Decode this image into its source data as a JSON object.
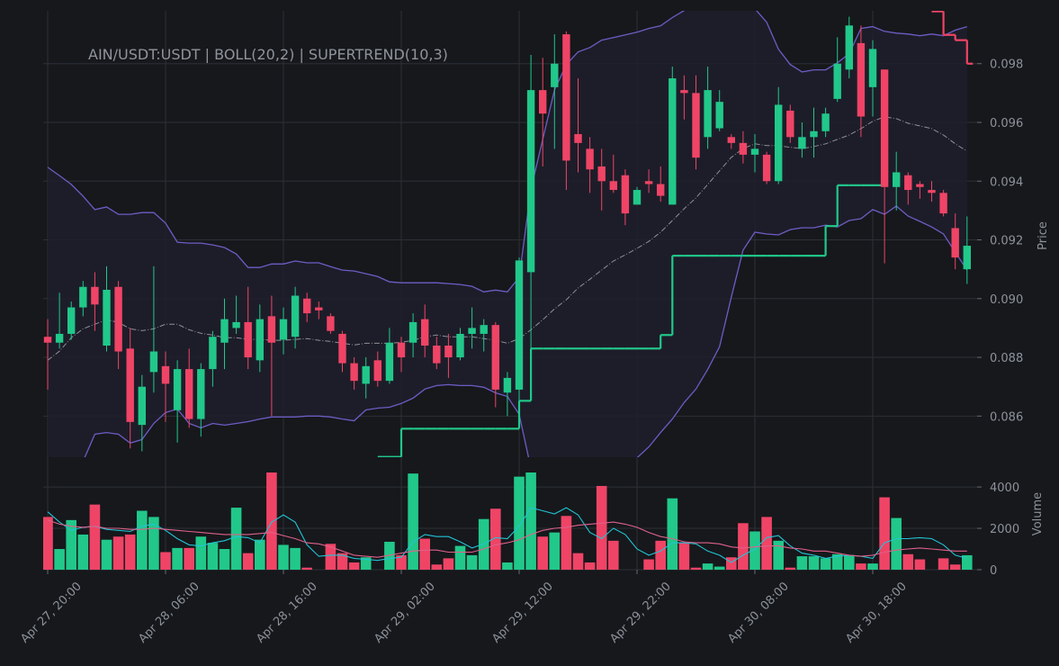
{
  "chart_data": {
    "type": "candlestick",
    "title": "AIN/USDT:USDT | BOLL(20,2) | SUPERTREND(10,3)",
    "ylabel": "Price",
    "x": [
      "Apr 27, 20:00",
      null,
      null,
      null,
      null,
      null,
      null,
      null,
      null,
      null,
      "Apr 28, 06:00",
      null,
      null,
      null,
      null,
      null,
      null,
      null,
      null,
      null,
      "Apr 28, 16:00",
      null,
      null,
      null,
      null,
      null,
      null,
      null,
      null,
      null,
      "Apr 29, 02:00",
      null,
      null,
      null,
      null,
      null,
      null,
      null,
      null,
      null,
      "Apr 29, 12:00",
      null,
      null,
      null,
      null,
      null,
      null,
      null,
      null,
      null,
      "Apr 29, 22:00",
      null,
      null,
      null,
      null,
      null,
      null,
      null,
      null,
      null,
      "Apr 30, 08:00",
      null,
      null,
      null,
      null,
      null,
      null,
      null,
      null,
      null,
      "Apr 30, 18:00",
      null,
      null,
      null,
      null,
      null,
      null,
      null,
      null
    ],
    "open": [
      0.0887,
      0.0885,
      0.0888,
      0.0897,
      0.0904,
      0.0884,
      0.0904,
      0.0883,
      0.0857,
      0.0875,
      0.0877,
      0.0862,
      0.0876,
      0.0859,
      0.0876,
      0.0885,
      0.089,
      0.0892,
      0.0879,
      0.0894,
      0.0886,
      0.0887,
      0.09,
      0.0897,
      0.0894,
      0.0888,
      0.0878,
      0.0871,
      0.0879,
      0.0872,
      0.0885,
      0.0885,
      0.0893,
      0.0884,
      0.0884,
      0.088,
      0.0888,
      0.0888,
      0.0891,
      0.0868,
      0.0869,
      0.0909,
      0.0971,
      0.0972,
      0.099,
      0.0956,
      0.0951,
      0.0945,
      0.094,
      0.0942,
      0.0932,
      0.094,
      0.0939,
      0.0932,
      0.0971,
      0.097,
      0.0955,
      0.0958,
      0.0955,
      0.0953,
      0.0949,
      0.0949,
      0.094,
      0.0964,
      0.0951,
      0.0955,
      0.0957,
      0.0968,
      0.0978,
      0.0987,
      0.0972,
      0.0978,
      0.0938,
      0.0942,
      0.0939,
      0.0937,
      0.0936,
      0.0924,
      0.091
    ],
    "high": [
      0.0893,
      0.0902,
      0.0899,
      0.0906,
      0.0909,
      0.0911,
      0.0906,
      0.089,
      0.0874,
      0.0911,
      0.0882,
      0.0879,
      0.0883,
      0.0878,
      0.0889,
      0.09,
      0.0901,
      0.0904,
      0.0898,
      0.0901,
      0.0897,
      0.0904,
      0.0902,
      0.0899,
      0.0895,
      0.0889,
      0.088,
      0.088,
      0.0882,
      0.089,
      0.0887,
      0.0895,
      0.0898,
      0.0887,
      0.0888,
      0.089,
      0.0897,
      0.0893,
      0.0892,
      0.0875,
      0.0914,
      0.0983,
      0.0982,
      0.099,
      0.0991,
      0.0975,
      0.0955,
      0.0951,
      0.0949,
      0.0944,
      0.0938,
      0.0944,
      0.0945,
      0.0979,
      0.0976,
      0.0976,
      0.0979,
      0.0971,
      0.0956,
      0.0957,
      0.0956,
      0.095,
      0.0972,
      0.0966,
      0.096,
      0.0965,
      0.0965,
      0.0989,
      0.0996,
      0.0993,
      0.0988,
      0.0978,
      0.095,
      0.0943,
      0.094,
      0.094,
      0.0937,
      0.0929,
      0.0928
    ],
    "low": [
      0.0869,
      0.0883,
      0.0886,
      0.0894,
      0.0889,
      0.0882,
      0.0876,
      0.0849,
      0.0848,
      0.0868,
      0.0858,
      0.0851,
      0.0856,
      0.0853,
      0.087,
      0.0876,
      0.0888,
      0.0876,
      0.0875,
      0.086,
      0.0881,
      0.0883,
      0.0892,
      0.0893,
      0.0888,
      0.0875,
      0.0869,
      0.0866,
      0.087,
      0.0871,
      0.0875,
      0.088,
      0.088,
      0.0876,
      0.0873,
      0.0879,
      0.0883,
      0.0882,
      0.0863,
      0.086,
      0.086,
      0.0874,
      0.0945,
      0.0951,
      0.0937,
      0.0943,
      0.0936,
      0.093,
      0.0936,
      0.0925,
      0.0932,
      0.0936,
      0.0933,
      0.0932,
      0.0961,
      0.0944,
      0.0951,
      0.0957,
      0.0951,
      0.0946,
      0.0943,
      0.0939,
      0.0939,
      0.0953,
      0.0948,
      0.0948,
      0.0955,
      0.0967,
      0.0975,
      0.0955,
      0.0962,
      0.0912,
      0.093,
      0.0932,
      0.0934,
      0.0933,
      0.0928,
      0.091,
      0.0905
    ],
    "close": [
      0.0885,
      0.0888,
      0.0897,
      0.0904,
      0.0898,
      0.0903,
      0.0882,
      0.0858,
      0.087,
      0.0882,
      0.0871,
      0.0876,
      0.0859,
      0.0876,
      0.0887,
      0.0893,
      0.0892,
      0.088,
      0.0893,
      0.0885,
      0.0893,
      0.0901,
      0.0895,
      0.0896,
      0.0889,
      0.0878,
      0.0872,
      0.0877,
      0.0872,
      0.0885,
      0.088,
      0.0892,
      0.0884,
      0.0878,
      0.088,
      0.0888,
      0.089,
      0.0891,
      0.0869,
      0.0873,
      0.0913,
      0.0971,
      0.0963,
      0.098,
      0.0947,
      0.0953,
      0.0944,
      0.094,
      0.0937,
      0.0929,
      0.0937,
      0.0939,
      0.0935,
      0.0975,
      0.097,
      0.0948,
      0.0971,
      0.0967,
      0.0953,
      0.0949,
      0.0951,
      0.094,
      0.0966,
      0.0955,
      0.0955,
      0.0957,
      0.0963,
      0.098,
      0.0993,
      0.0962,
      0.0985,
      0.0938,
      0.0943,
      0.0937,
      0.0938,
      0.0936,
      0.0929,
      0.0914,
      0.0918
    ],
    "up_color": "#21c88a",
    "down_color": "#ef4466",
    "ylim": [
      0.0846,
      0.0998
    ],
    "yticks": [
      0.086,
      0.088,
      {
        "value": 0.09,
        "label": "0.090"
      },
      0.092,
      0.094,
      0.096,
      0.098
    ],
    "grid": true,
    "bollinger": {
      "color": "#6e5cc4",
      "fill": "#1e1e2c",
      "middle_color": "#8e8e96",
      "upper": [
        0.09447,
        0.09419,
        0.09389,
        0.09349,
        0.09303,
        0.09312,
        0.09287,
        0.09287,
        0.09293,
        0.09293,
        0.09257,
        0.09192,
        0.09189,
        0.09189,
        0.09183,
        0.09174,
        0.09152,
        0.09106,
        0.09106,
        0.09118,
        0.09118,
        0.09128,
        0.09122,
        0.09122,
        0.09109,
        0.09097,
        0.09094,
        0.09085,
        0.09075,
        0.09057,
        0.09054,
        0.09054,
        0.09054,
        0.09054,
        0.09051,
        0.09048,
        0.09042,
        0.09023,
        0.09029,
        0.09023,
        0.09072,
        0.09373,
        0.09542,
        0.09711,
        0.09797,
        0.0984,
        0.09855,
        0.0988,
        0.09889,
        0.09898,
        0.09907,
        0.0992,
        0.09929,
        0.09957,
        0.09981,
        0.10018,
        0.10049,
        0.10064,
        0.10064,
        0.10049,
        0.09987,
        0.09941,
        0.09849,
        0.09797,
        0.09772,
        0.09779,
        0.09779,
        0.09803,
        0.09834,
        0.0992,
        0.09926,
        0.0991,
        0.09904,
        0.09901,
        0.09895,
        0.09901,
        0.09895,
        0.09914,
        0.09926
      ],
      "middle": [
        0.0879,
        0.08821,
        0.08867,
        0.08897,
        0.08913,
        0.08928,
        0.08919,
        0.08897,
        0.08891,
        0.08897,
        0.08913,
        0.08913,
        0.08894,
        0.08882,
        0.08876,
        0.08867,
        0.08867,
        0.08861,
        0.08861,
        0.08858,
        0.08858,
        0.08861,
        0.08864,
        0.08858,
        0.08854,
        0.08848,
        0.08842,
        0.08848,
        0.08848,
        0.08848,
        0.08851,
        0.08858,
        0.0887,
        0.08876,
        0.0887,
        0.0887,
        0.0887,
        0.08864,
        0.08858,
        0.08848,
        0.08864,
        0.08894,
        0.08928,
        0.08965,
        0.08996,
        0.09036,
        0.09066,
        0.09097,
        0.09128,
        0.09149,
        0.09171,
        0.09195,
        0.09226,
        0.09266,
        0.09306,
        0.09343,
        0.09389,
        0.09435,
        0.09481,
        0.09511,
        0.09527,
        0.09521,
        0.09521,
        0.09515,
        0.09511,
        0.09518,
        0.09527,
        0.09542,
        0.09557,
        0.09579,
        0.09604,
        0.09619,
        0.09613,
        0.09597,
        0.09588,
        0.09579,
        0.09557,
        0.09527,
        0.09502
      ],
      "lower": [
        0.08253,
        0.08314,
        0.08376,
        0.08446,
        0.08538,
        0.08544,
        0.08538,
        0.08508,
        0.0852,
        0.08575,
        0.08612,
        0.08624,
        0.08575,
        0.0856,
        0.08575,
        0.08569,
        0.08575,
        0.08581,
        0.0859,
        0.08597,
        0.08597,
        0.08597,
        0.086,
        0.086,
        0.08597,
        0.0859,
        0.08584,
        0.08621,
        0.08627,
        0.0863,
        0.08643,
        0.08661,
        0.08692,
        0.08704,
        0.08707,
        0.08704,
        0.08704,
        0.08698,
        0.08679,
        0.08667,
        0.08606,
        0.08422,
        0.08176,
        0.08022,
        0.079,
        0.07869,
        0.07961,
        0.08084,
        0.08207,
        0.08329,
        0.08458,
        0.08495,
        0.08544,
        0.0859,
        0.08646,
        0.08692,
        0.08759,
        0.08836,
        0.09005,
        0.09165,
        0.09226,
        0.0922,
        0.09217,
        0.09235,
        0.09241,
        0.09241,
        0.0925,
        0.09244,
        0.09266,
        0.09272,
        0.09303,
        0.09287,
        0.09315,
        0.09281,
        0.09263,
        0.09244,
        0.0922,
        0.09158,
        0.09097
      ]
    },
    "supertrend": {
      "up_color": "#21c88a",
      "down_color": "#ef4466",
      "lower": [
        null,
        null,
        null,
        null,
        null,
        null,
        null,
        null,
        null,
        null,
        null,
        null,
        null,
        null,
        null,
        null,
        null,
        null,
        null,
        null,
        null,
        null,
        null,
        null,
        null,
        null,
        null,
        null,
        0.08461,
        0.08461,
        0.08557,
        0.08557,
        0.08557,
        0.08557,
        0.08557,
        0.08557,
        0.08557,
        0.08557,
        0.08557,
        0.08557,
        0.08652,
        0.0883,
        0.0883,
        0.0883,
        0.0883,
        0.0883,
        0.0883,
        0.0883,
        0.0883,
        0.0883,
        0.0883,
        0.0883,
        0.08876,
        0.09146,
        0.09146,
        0.09146,
        0.09146,
        0.09146,
        0.09146,
        0.09146,
        0.09146,
        0.09146,
        0.09146,
        0.09146,
        0.09146,
        0.09146,
        0.09247,
        0.09386,
        0.09386,
        0.09386,
        0.09386,
        null,
        null,
        null,
        null,
        null,
        null,
        null,
        null
      ],
      "upper": [
        null,
        null,
        null,
        null,
        null,
        null,
        null,
        null,
        null,
        null,
        null,
        null,
        null,
        null,
        null,
        null,
        null,
        null,
        null,
        null,
        null,
        null,
        null,
        null,
        null,
        null,
        null,
        null,
        null,
        null,
        null,
        null,
        null,
        null,
        null,
        null,
        null,
        null,
        null,
        null,
        null,
        null,
        null,
        null,
        null,
        null,
        null,
        null,
        null,
        null,
        null,
        null,
        null,
        null,
        null,
        null,
        null,
        null,
        null,
        null,
        null,
        null,
        null,
        null,
        null,
        null,
        null,
        null,
        null,
        null,
        null,
        null,
        null,
        null,
        null,
        0.09978,
        0.09898,
        0.0988,
        0.098
      ]
    },
    "volume": {
      "ylabel": "Volume",
      "values": [
        2550,
        1000,
        2400,
        1700,
        3150,
        1450,
        1600,
        1700,
        2850,
        2550,
        850,
        1050,
        1050,
        1600,
        1300,
        1000,
        3000,
        800,
        1450,
        4850,
        1200,
        1050,
        100,
        0,
        1250,
        800,
        350,
        600,
        0,
        1350,
        700,
        4650,
        1500,
        250,
        550,
        1150,
        700,
        2450,
        2950,
        350,
        4500,
        4700,
        1600,
        1800,
        2600,
        800,
        350,
        4050,
        1400,
        0,
        0,
        500,
        1400,
        3450,
        1300,
        100,
        300,
        150,
        600,
        2250,
        1850,
        2550,
        1400,
        100,
        650,
        650,
        550,
        750,
        700,
        300,
        300,
        3500,
        2500,
        750,
        500,
        0,
        550,
        250,
        700
      ],
      "ylim": [
        0,
        4700
      ],
      "yticks": [
        0,
        2000,
        4000
      ],
      "ma": [
        {
          "color": "#22c4d4",
          "values": [
            2800,
            2300,
            1900,
            2050,
            2100,
            1950,
            1900,
            1850,
            2100,
            2200,
            1900,
            1500,
            1200,
            1150,
            1300,
            1400,
            1600,
            1550,
            1300,
            2300,
            2650,
            2300,
            1200,
            650,
            700,
            700,
            550,
            500,
            450,
            550,
            600,
            1350,
            1700,
            1600,
            1600,
            1350,
            1050,
            1250,
            1550,
            1500,
            2100,
            3000,
            2850,
            2700,
            3000,
            2650,
            1800,
            1500,
            2000,
            1700,
            1000,
            700,
            900,
            1300,
            1300,
            1250,
            900,
            700,
            350,
            700,
            1000,
            1550,
            1650,
            1150,
            800,
            700,
            550,
            650,
            700,
            650,
            550,
            1300,
            1500,
            1500,
            1550,
            1500,
            1200,
            700,
            550
          ]
        },
        {
          "color": "#e0608a",
          "values": [
            2400,
            2200,
            2100,
            2050,
            2100,
            2000,
            2000,
            1950,
            1950,
            2000,
            1950,
            1900,
            1850,
            1800,
            1750,
            1700,
            1700,
            1700,
            1750,
            1800,
            1650,
            1500,
            1300,
            1250,
            1100,
            900,
            700,
            650,
            600,
            700,
            800,
            900,
            950,
            950,
            850,
            850,
            850,
            1000,
            1200,
            1300,
            1450,
            1700,
            1900,
            2000,
            2050,
            2150,
            2200,
            2250,
            2300,
            2200,
            2050,
            1800,
            1600,
            1500,
            1350,
            1300,
            1300,
            1250,
            1100,
            1050,
            1100,
            1150,
            1150,
            1050,
            1000,
            900,
            900,
            800,
            700,
            650,
            700,
            850,
            950,
            1000,
            1050,
            1000,
            950,
            900,
            900
          ]
        }
      ]
    }
  }
}
